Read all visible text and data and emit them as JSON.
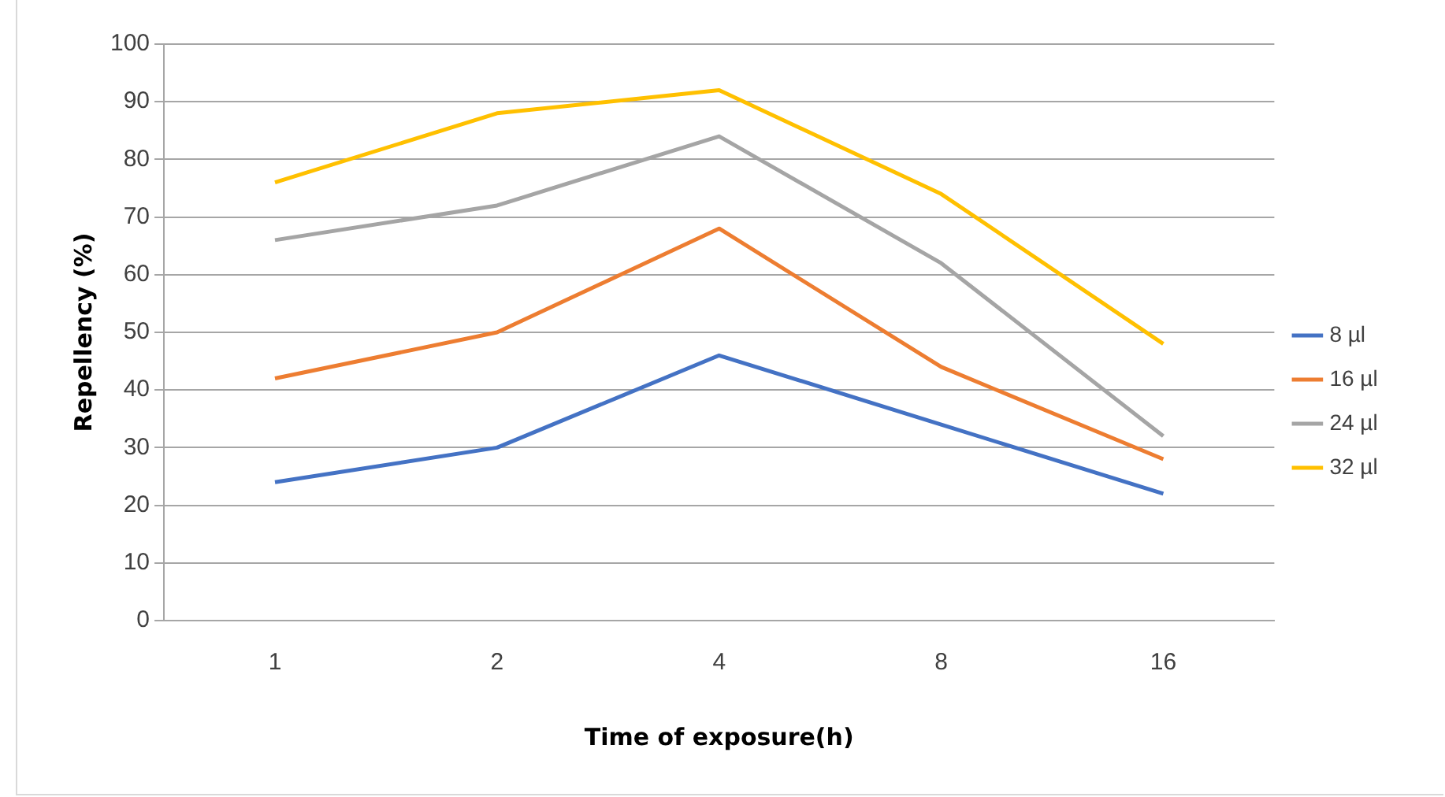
{
  "chart_data": {
    "type": "line",
    "xlabel": "Time of exposure(h)",
    "ylabel": "Repellency (%)",
    "categories": [
      "1",
      "2",
      "4",
      "8",
      "16"
    ],
    "series": [
      {
        "name": "8 µl",
        "color": "#4472c4",
        "values": [
          24,
          30,
          46,
          34,
          22
        ]
      },
      {
        "name": "16 µl",
        "color": "#ed7d31",
        "values": [
          42,
          50,
          68,
          44,
          28
        ]
      },
      {
        "name": "24 µl",
        "color": "#a5a5a5",
        "values": [
          66,
          72,
          84,
          62,
          32
        ]
      },
      {
        "name": "32 µl",
        "color": "#ffc000",
        "values": [
          76,
          88,
          92,
          74,
          48
        ]
      }
    ],
    "ylim": [
      0,
      100
    ],
    "yticks": [
      0,
      10,
      20,
      30,
      40,
      50,
      60,
      70,
      80,
      90,
      100
    ],
    "grid": "y",
    "legend": "right",
    "marker": "none",
    "line_style": "solid"
  }
}
